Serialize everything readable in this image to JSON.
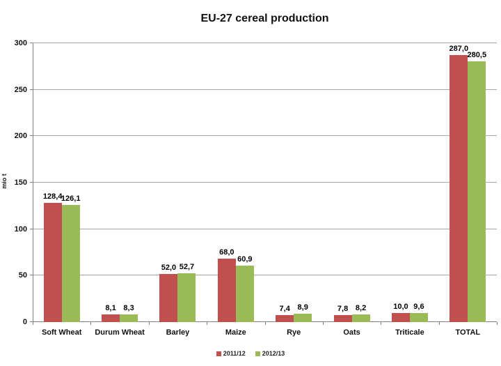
{
  "chart_data": {
    "type": "bar",
    "title": "EU-27 cereal production",
    "xlabel": "",
    "ylabel": "mio t",
    "ylim": [
      0,
      300
    ],
    "ytick_step": 50,
    "grid": true,
    "legend_position": "bottom",
    "categories": [
      "Soft Wheat",
      "Durum Wheat",
      "Barley",
      "Maize",
      "Rye",
      "Oats",
      "Triticale",
      "TOTAL"
    ],
    "series": [
      {
        "name": "2011/12",
        "color": "#C0504D",
        "values": [
          128.4,
          8.1,
          52.0,
          68.0,
          7.4,
          7.8,
          10.0,
          287.0
        ],
        "labels": [
          "128,4",
          "8,1",
          "52,0",
          "68,0",
          "7,4",
          "7,8",
          "10,0",
          "287,0"
        ]
      },
      {
        "name": "2012/13",
        "color": "#9BBB59",
        "values": [
          126.1,
          8.3,
          52.7,
          60.9,
          8.9,
          8.2,
          9.6,
          280.5
        ],
        "labels": [
          "126,1",
          "8,3",
          "52,7",
          "60,9",
          "8,9",
          "8,2",
          "9,6",
          "280,5"
        ]
      }
    ],
    "colors": {
      "gridline": "#a6a6a6",
      "axis": "#808080",
      "text": "#111111"
    }
  }
}
